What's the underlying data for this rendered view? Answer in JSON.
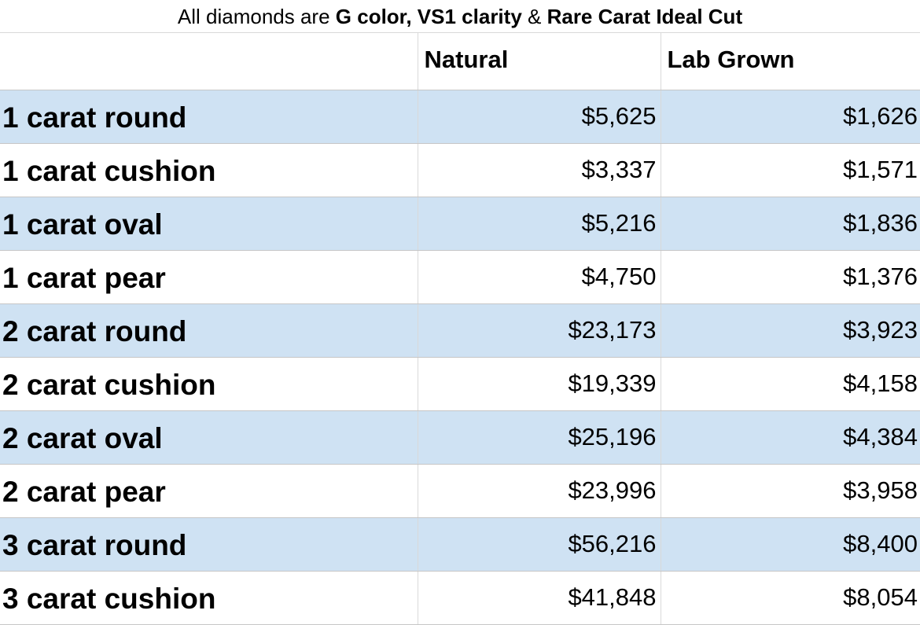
{
  "caption": {
    "prefix": "All diamonds are ",
    "bold1": "G color, VS1 clarity",
    "connector": " & ",
    "bold2": "Rare Carat Ideal Cut"
  },
  "table": {
    "columns": [
      "",
      "Natural",
      "Lab Grown"
    ],
    "rows": [
      {
        "label": "1 carat round",
        "natural": "$5,625",
        "lab_grown": "$1,626",
        "shaded": true
      },
      {
        "label": "1 carat cushion",
        "natural": "$3,337",
        "lab_grown": "$1,571",
        "shaded": false
      },
      {
        "label": "1 carat oval",
        "natural": "$5,216",
        "lab_grown": "$1,836",
        "shaded": true
      },
      {
        "label": "1 carat pear",
        "natural": "$4,750",
        "lab_grown": "$1,376",
        "shaded": false
      },
      {
        "label": "2 carat round",
        "natural": "$23,173",
        "lab_grown": "$3,923",
        "shaded": true
      },
      {
        "label": "2 carat cushion",
        "natural": "$19,339",
        "lab_grown": "$4,158",
        "shaded": false
      },
      {
        "label": "2 carat oval",
        "natural": "$25,196",
        "lab_grown": "$4,384",
        "shaded": true
      },
      {
        "label": "2 carat pear",
        "natural": "$23,996",
        "lab_grown": "$3,958",
        "shaded": false
      },
      {
        "label": "3 carat round",
        "natural": "$56,216",
        "lab_grown": "$8,400",
        "shaded": true
      },
      {
        "label": "3 carat cushion",
        "natural": "$41,848",
        "lab_grown": "$8,054",
        "shaded": false
      }
    ]
  },
  "colors": {
    "shaded_row": "#cfe2f3",
    "unshaded_row": "#ffffff",
    "grid_line": "#c6c6c6"
  }
}
